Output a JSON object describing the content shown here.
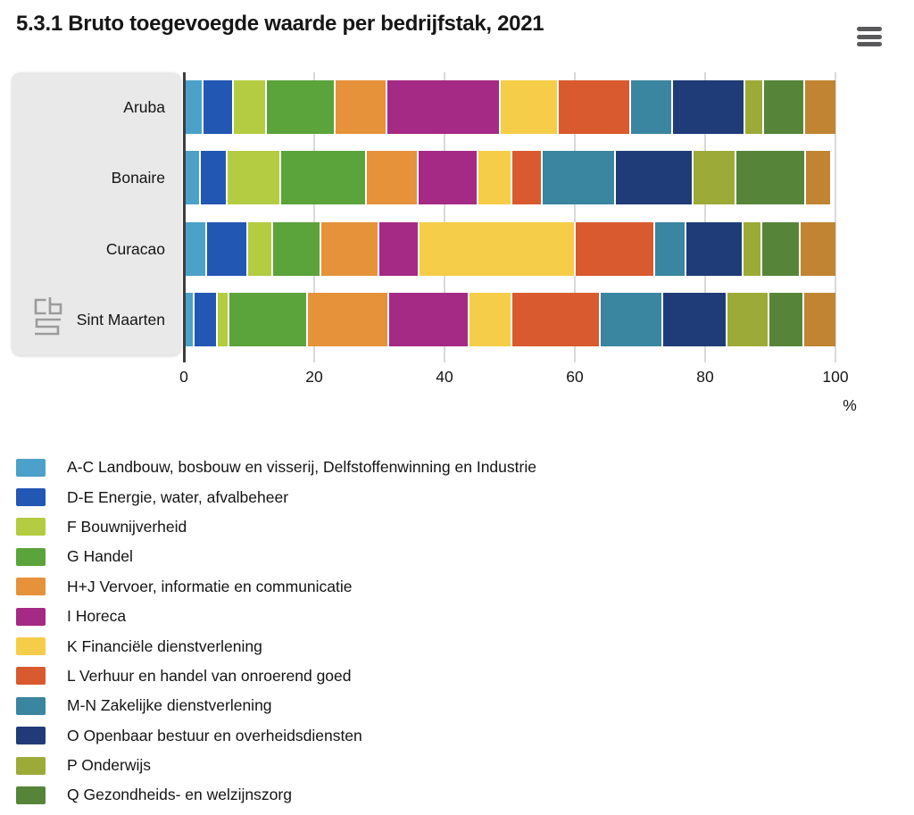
{
  "header": {
    "title": "5.3.1 Bruto toegevoegde waarde per bedrijfstak, 2021"
  },
  "chart_data": {
    "type": "bar",
    "variant": "horizontal-stacked",
    "title": "5.3.1 Bruto toegevoegde waarde per bedrijfstak, 2021",
    "categories": [
      "Aruba",
      "Bonaire",
      "Curacao",
      "Sint Maarten"
    ],
    "series": [
      {
        "name": "A-C Landbouw, bosbouw en visserij, Delfstoffenwinning en Industrie",
        "color": "#4BA1C9",
        "values": [
          2.5,
          2.0,
          3.0,
          1.1
        ]
      },
      {
        "name": "D-E Energie, water, afvalbeheer",
        "color": "#2257B3",
        "values": [
          4.7,
          4.2,
          6.3,
          3.6
        ]
      },
      {
        "name": "F Bouwnijverheid",
        "color": "#B3CC41",
        "values": [
          5.1,
          8.2,
          3.9,
          1.8
        ]
      },
      {
        "name": "G Handel",
        "color": "#5BA33B",
        "values": [
          10.5,
          13.2,
          7.4,
          12.0
        ]
      },
      {
        "name": "H+J Vervoer, informatie en communicatie",
        "color": "#E5923A",
        "values": [
          8.0,
          8.0,
          8.9,
          12.6
        ]
      },
      {
        "name": "I Horeca",
        "color": "#A52A85",
        "values": [
          17.4,
          9.2,
          6.3,
          12.4
        ]
      },
      {
        "name": "K Financiële dienstverlening",
        "color": "#F5CD48",
        "values": [
          9.0,
          5.2,
          24.0,
          6.5
        ]
      },
      {
        "name": "L Verhuur en handel van onroerend goed",
        "color": "#D95A2E",
        "values": [
          11.1,
          4.7,
          12.2,
          13.7
        ]
      },
      {
        "name": "M-N Zakelijke dienstverlening",
        "color": "#3A85A0",
        "values": [
          6.5,
          11.2,
          4.8,
          9.6
        ]
      },
      {
        "name": "O Openbaar bestuur en overheidsdiensten",
        "color": "#1F3C78",
        "values": [
          11.2,
          12.0,
          8.9,
          9.9
        ]
      },
      {
        "name": "P Onderwijs",
        "color": "#9CAB37",
        "values": [
          2.8,
          6.6,
          2.9,
          6.5
        ]
      },
      {
        "name": "Q Gezondheids- en welzijnszorg",
        "color": "#56853A",
        "values": [
          6.4,
          10.7,
          5.8,
          5.3
        ]
      },
      {
        "name": "",
        "color": "#C08432",
        "values": [
          4.9,
          4.0,
          5.7,
          5.1
        ]
      }
    ],
    "xticks": [
      0,
      20,
      40,
      60,
      80,
      100
    ],
    "xlabel": "%",
    "xlim": [
      0,
      100
    ],
    "grid": true,
    "legend_position": "bottom"
  },
  "colors": {
    "category_panel_bg": "#E9E9E9",
    "axis_line": "#3D3D3D",
    "gridline": "#D9D9D9",
    "text": "#161616",
    "menu_icon": "#59595B",
    "cbs_logo": "#9B9B9B"
  }
}
